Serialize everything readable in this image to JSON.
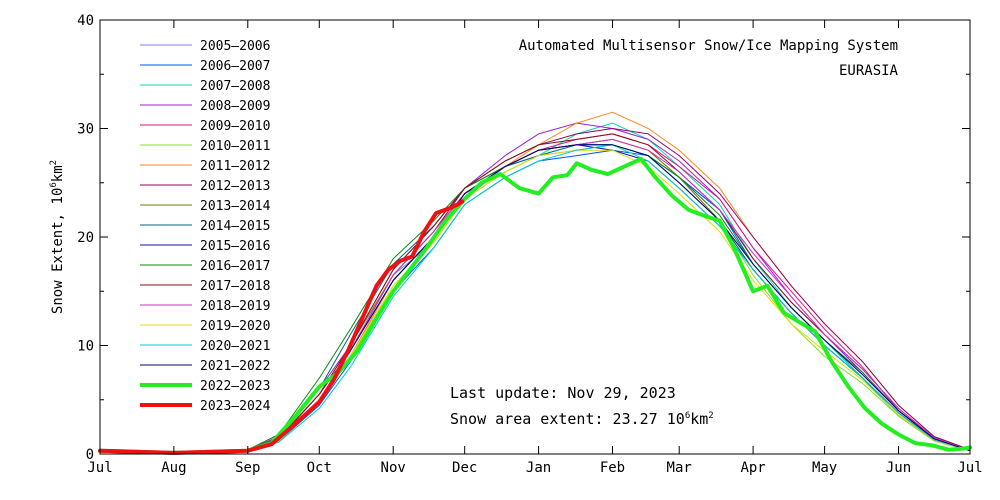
{
  "colors": {
    "background": "#ffffff",
    "axis": "#000000"
  },
  "chart_data": {
    "type": "line",
    "title": "Automated  Multisensor Snow/Ice Mapping System",
    "subtitle": "EURASIA",
    "ylabel": "Snow Extent, 10",
    "ylabel_exp": "6",
    "ylabel_unit": "km",
    "ylabel_unit_exp": "2",
    "ylim": [
      0,
      40
    ],
    "yticks": [
      0,
      10,
      20,
      30,
      40
    ],
    "xlim": [
      0,
      365
    ],
    "xticks": [
      {
        "label": "Jul",
        "x": 0
      },
      {
        "label": "Aug",
        "x": 31
      },
      {
        "label": "Sep",
        "x": 62
      },
      {
        "label": "Oct",
        "x": 92
      },
      {
        "label": "Nov",
        "x": 123
      },
      {
        "label": "Dec",
        "x": 153
      },
      {
        "label": "Jan",
        "x": 184
      },
      {
        "label": "Feb",
        "x": 215
      },
      {
        "label": "Mar",
        "x": 243
      },
      {
        "label": "Apr",
        "x": 274
      },
      {
        "label": "May",
        "x": 304
      },
      {
        "label": "Jun",
        "x": 335
      },
      {
        "label": "Jul",
        "x": 365
      }
    ],
    "legend_position": "top-left",
    "grid": false,
    "annotation": {
      "update_label": "Last update: Nov 29, 2023",
      "extent_prefix": "Snow area extent: 23.27 10",
      "extent_exp": "6",
      "extent_unit": "km",
      "extent_unit_exp": "2"
    },
    "series": [
      {
        "name": "2005–2006",
        "color": "#7f7fff",
        "width": 1,
        "x": [
          0,
          31,
          62,
          75,
          92,
          105,
          123,
          140,
          153,
          170,
          184,
          200,
          215,
          230,
          243,
          260,
          274,
          290,
          304,
          320,
          335,
          350,
          365
        ],
        "y": [
          0.3,
          0.1,
          0.4,
          1.5,
          5.5,
          9.5,
          16.5,
          19.5,
          23.5,
          26.5,
          27.5,
          28,
          28.5,
          27.5,
          25.5,
          22.5,
          18,
          14,
          11,
          7.5,
          4,
          1.5,
          0.4
        ]
      },
      {
        "name": "2006–2007",
        "color": "#0055ff",
        "width": 1,
        "x": [
          0,
          31,
          62,
          75,
          92,
          105,
          123,
          140,
          153,
          170,
          184,
          200,
          215,
          230,
          243,
          260,
          274,
          290,
          304,
          320,
          335,
          350,
          365
        ],
        "y": [
          0.2,
          0.1,
          0.3,
          1.2,
          4.5,
          8.5,
          15,
          19,
          23,
          25.5,
          27,
          27.5,
          28,
          27.5,
          25.5,
          22.5,
          17.5,
          13.5,
          10.5,
          7,
          3.5,
          1.2,
          0.3
        ]
      },
      {
        "name": "2007–2008",
        "color": "#00ddaa",
        "width": 1,
        "x": [
          0,
          31,
          62,
          75,
          92,
          105,
          123,
          140,
          153,
          170,
          184,
          200,
          215,
          230,
          243,
          260,
          274,
          290,
          304,
          320,
          335,
          350,
          365
        ],
        "y": [
          0.3,
          0.1,
          0.3,
          1.3,
          5,
          9,
          16,
          20,
          24,
          26,
          27.5,
          29.5,
          30.5,
          29,
          26.5,
          23,
          18,
          13.5,
          10.5,
          7,
          3.5,
          1.3,
          0.3
        ]
      },
      {
        "name": "2008–2009",
        "color": "#9922dd",
        "width": 1,
        "x": [
          0,
          31,
          62,
          75,
          92,
          105,
          123,
          140,
          153,
          170,
          184,
          200,
          215,
          230,
          243,
          260,
          274,
          290,
          304,
          320,
          335,
          350,
          365
        ],
        "y": [
          0.3,
          0.1,
          0.4,
          1.6,
          6,
          10,
          17,
          21,
          24.5,
          27.5,
          29.5,
          30.5,
          30,
          29,
          27,
          23.5,
          19,
          14.5,
          11,
          7.5,
          4,
          1.4,
          0.3
        ]
      },
      {
        "name": "2009–2010",
        "color": "#dd1188",
        "width": 1,
        "x": [
          0,
          31,
          62,
          75,
          92,
          105,
          123,
          140,
          153,
          170,
          184,
          200,
          215,
          230,
          243,
          260,
          274,
          290,
          304,
          320,
          335,
          350,
          365
        ],
        "y": [
          0.3,
          0.1,
          0.3,
          1.3,
          5,
          9,
          16,
          20,
          24,
          26.5,
          28,
          29,
          29.5,
          28.5,
          26.5,
          23.5,
          19,
          15,
          11.5,
          8,
          4,
          1.5,
          0.3
        ]
      },
      {
        "name": "2010–2011",
        "color": "#88dd22",
        "width": 1,
        "x": [
          0,
          31,
          62,
          75,
          92,
          105,
          123,
          140,
          153,
          170,
          184,
          200,
          215,
          230,
          243,
          260,
          274,
          290,
          304,
          320,
          335,
          350,
          365
        ],
        "y": [
          0.3,
          0.1,
          0.3,
          1.2,
          4.8,
          8.8,
          15.5,
          19.5,
          23.5,
          26,
          27.5,
          28.5,
          29,
          28,
          25.5,
          21.5,
          16.5,
          12,
          9,
          6.5,
          3.5,
          1.2,
          0.3
        ]
      },
      {
        "name": "2011–2012",
        "color": "#ff8822",
        "width": 1,
        "x": [
          0,
          31,
          62,
          75,
          92,
          105,
          123,
          140,
          153,
          170,
          184,
          200,
          215,
          230,
          243,
          260,
          274,
          290,
          304,
          320,
          335,
          350,
          365
        ],
        "y": [
          0.3,
          0.1,
          0.3,
          1.3,
          5,
          9,
          16,
          20,
          24,
          26.5,
          28.5,
          30.5,
          31.5,
          30,
          28,
          24.5,
          20,
          15.5,
          12,
          8.5,
          4.5,
          1.6,
          0.4
        ]
      },
      {
        "name": "2012–2013",
        "color": "#990066",
        "width": 1,
        "x": [
          0,
          31,
          62,
          75,
          92,
          105,
          123,
          140,
          153,
          170,
          184,
          200,
          215,
          230,
          243,
          260,
          274,
          290,
          304,
          320,
          335,
          350,
          365
        ],
        "y": [
          0.3,
          0.1,
          0.3,
          1.4,
          5.5,
          9.5,
          16.5,
          20.5,
          24.5,
          27,
          28.5,
          29.5,
          30,
          29.5,
          27.5,
          24,
          20,
          15.5,
          12,
          8.5,
          4.5,
          1.6,
          0.4
        ]
      },
      {
        "name": "2013–2014",
        "color": "#777711",
        "width": 1,
        "x": [
          0,
          31,
          62,
          75,
          92,
          105,
          123,
          140,
          153,
          170,
          184,
          200,
          215,
          230,
          243,
          260,
          274,
          290,
          304,
          320,
          335,
          350,
          365
        ],
        "y": [
          0.3,
          0.1,
          0.4,
          1.5,
          5.5,
          10,
          16.5,
          20.5,
          24,
          26.5,
          28,
          28.5,
          29,
          28,
          25.5,
          21.5,
          17,
          13,
          10,
          7,
          3.8,
          1.3,
          0.3
        ]
      },
      {
        "name": "2014–2015",
        "color": "#006688",
        "width": 1,
        "x": [
          0,
          31,
          62,
          75,
          92,
          105,
          123,
          140,
          153,
          170,
          184,
          200,
          215,
          230,
          243,
          260,
          274,
          290,
          304,
          320,
          335,
          350,
          365
        ],
        "y": [
          0.3,
          0.1,
          0.3,
          1.5,
          6,
          11,
          17.5,
          21,
          24.5,
          26.5,
          27.5,
          28.5,
          28.5,
          27.5,
          25,
          21.5,
          17,
          13,
          10,
          7,
          3.8,
          1.3,
          0.3
        ]
      },
      {
        "name": "2015–2016",
        "color": "#1111aa",
        "width": 1,
        "x": [
          0,
          31,
          62,
          75,
          92,
          105,
          123,
          140,
          153,
          170,
          184,
          200,
          215,
          230,
          243,
          260,
          274,
          290,
          304,
          320,
          335,
          350,
          365
        ],
        "y": [
          0.3,
          0.1,
          0.3,
          1.3,
          5,
          9.5,
          16,
          20,
          24,
          26.5,
          28,
          28.5,
          28,
          27,
          24.5,
          21,
          17,
          13,
          10,
          7,
          3.8,
          1.3,
          0.3
        ]
      },
      {
        "name": "2016–2017",
        "color": "#118811",
        "width": 1,
        "x": [
          0,
          31,
          62,
          75,
          92,
          105,
          123,
          140,
          153,
          170,
          184,
          200,
          215,
          230,
          243,
          260,
          274,
          290,
          304,
          320,
          335,
          350,
          365
        ],
        "y": [
          0.3,
          0.1,
          0.4,
          1.8,
          7,
          11.5,
          18,
          21.5,
          24.5,
          26.5,
          28,
          28.5,
          28.5,
          27.5,
          25.5,
          22,
          17.5,
          13.5,
          10.5,
          7.5,
          4,
          1.4,
          0.3
        ]
      },
      {
        "name": "2017–2018",
        "color": "#881111",
        "width": 1,
        "x": [
          0,
          31,
          62,
          75,
          92,
          105,
          123,
          140,
          153,
          170,
          184,
          200,
          215,
          230,
          243,
          260,
          274,
          290,
          304,
          320,
          335,
          350,
          365
        ],
        "y": [
          0.3,
          0.1,
          0.3,
          1.4,
          5.5,
          10,
          17,
          21,
          24.5,
          27,
          28.5,
          29,
          29.5,
          28.5,
          26,
          22.5,
          18,
          14,
          11,
          7.8,
          4.2,
          1.5,
          0.3
        ]
      },
      {
        "name": "2018–2019",
        "color": "#cc33cc",
        "width": 1,
        "x": [
          0,
          31,
          62,
          75,
          92,
          105,
          123,
          140,
          153,
          170,
          184,
          200,
          215,
          230,
          243,
          260,
          274,
          290,
          304,
          320,
          335,
          350,
          365
        ],
        "y": [
          0.3,
          0.1,
          0.3,
          1.3,
          5,
          9.5,
          16.5,
          20.5,
          24,
          26.5,
          28,
          28.5,
          29,
          28,
          26,
          22.5,
          18.5,
          14.5,
          11,
          7.8,
          4.2,
          1.5,
          0.3
        ]
      },
      {
        "name": "2019–2020",
        "color": "#dddd00",
        "width": 1,
        "x": [
          0,
          31,
          62,
          75,
          92,
          105,
          123,
          140,
          153,
          170,
          184,
          200,
          215,
          230,
          243,
          260,
          274,
          290,
          304,
          320,
          335,
          350,
          365
        ],
        "y": [
          0.3,
          0.1,
          0.3,
          1.2,
          4.8,
          9,
          15.5,
          19.5,
          23.5,
          26,
          27.5,
          28,
          28,
          26.5,
          24,
          20.5,
          16,
          12,
          9.5,
          6.8,
          3.6,
          1.2,
          0.3
        ]
      },
      {
        "name": "2020–2021",
        "color": "#00cccc",
        "width": 1,
        "x": [
          0,
          31,
          62,
          75,
          92,
          105,
          123,
          140,
          153,
          170,
          184,
          200,
          215,
          230,
          243,
          260,
          274,
          290,
          304,
          320,
          335,
          350,
          365
        ],
        "y": [
          0.3,
          0.1,
          0.3,
          1.1,
          4.2,
          8,
          14.5,
          19,
          23,
          25.5,
          27,
          28,
          28.5,
          27,
          24.5,
          21,
          17,
          13,
          10,
          7,
          3.8,
          1.3,
          0.3
        ]
      },
      {
        "name": "2021–2022",
        "color": "#000077",
        "width": 1,
        "x": [
          0,
          31,
          62,
          75,
          92,
          105,
          123,
          140,
          153,
          170,
          184,
          200,
          215,
          230,
          243,
          260,
          274,
          290,
          304,
          320,
          335,
          350,
          365
        ],
        "y": [
          0.3,
          0.1,
          0.3,
          1.3,
          5,
          9.5,
          16,
          20,
          24,
          26.5,
          28,
          28.5,
          28.5,
          27.5,
          25,
          21.5,
          17.5,
          13.5,
          10.5,
          7.3,
          4,
          1.4,
          0.3
        ]
      },
      {
        "name": "2022–2023",
        "color": "#22ee22",
        "width": 4,
        "x": [
          0,
          31,
          62,
          72,
          82,
          92,
          100,
          108,
          116,
          123,
          130,
          137,
          145,
          153,
          160,
          168,
          176,
          184,
          190,
          196,
          200,
          206,
          213,
          220,
          227,
          233,
          240,
          247,
          253,
          260,
          266,
          274,
          280,
          287,
          293,
          300,
          307,
          314,
          321,
          328,
          335,
          342,
          349,
          356,
          362,
          365
        ],
        "y": [
          0.3,
          0.1,
          0.3,
          1,
          3.5,
          6.2,
          7.5,
          9.5,
          12.5,
          15,
          17,
          19,
          21.5,
          23.5,
          25,
          25.8,
          24.5,
          24,
          25.5,
          25.7,
          26.8,
          26.2,
          25.8,
          26.5,
          27.2,
          25.5,
          23.8,
          22.5,
          22,
          21.5,
          19,
          15,
          15.5,
          13,
          12.2,
          11.3,
          8.5,
          6.2,
          4.2,
          2.8,
          1.8,
          1,
          0.8,
          0.4,
          0.5,
          0.6
        ]
      },
      {
        "name": "2023–2024",
        "color": "#ee1111",
        "width": 4,
        "x": [
          0,
          31,
          62,
          72,
          82,
          92,
          98,
          104,
          110,
          116,
          121,
          126,
          131,
          136,
          141,
          146,
          150,
          152
        ],
        "y": [
          0.3,
          0.1,
          0.3,
          0.9,
          2.8,
          4.8,
          6.8,
          9.5,
          12.5,
          15.5,
          17,
          17.8,
          18.2,
          20.5,
          22.2,
          22.6,
          23,
          23.27
        ]
      }
    ]
  }
}
